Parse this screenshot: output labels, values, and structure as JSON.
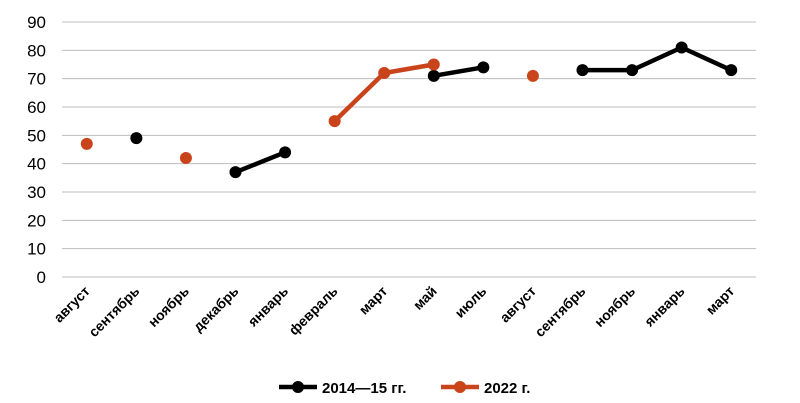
{
  "chart_data": {
    "type": "line",
    "categories": [
      "август",
      "сентябрь",
      "ноябрь",
      "декабрь",
      "январь",
      "февраль",
      "март",
      "май",
      "июль",
      "август",
      "сентябрь",
      "ноябрь",
      "январь",
      "март"
    ],
    "ylim": [
      0,
      90
    ],
    "yticks": [
      "0",
      "10",
      "20",
      "30",
      "40",
      "50",
      "60",
      "70",
      "80",
      "90"
    ],
    "grid": true,
    "legend_position": "bottom",
    "series": [
      {
        "name": "2014—15 гг.",
        "color": "#000000",
        "values": [
          null,
          49,
          null,
          37,
          44,
          null,
          null,
          71,
          74,
          null,
          73,
          73,
          81,
          73
        ]
      },
      {
        "name": "2022 г.",
        "color": "#c9441a",
        "values": [
          47,
          null,
          42,
          null,
          null,
          55,
          72,
          75,
          null,
          71,
          null,
          null,
          null,
          null
        ]
      }
    ]
  }
}
